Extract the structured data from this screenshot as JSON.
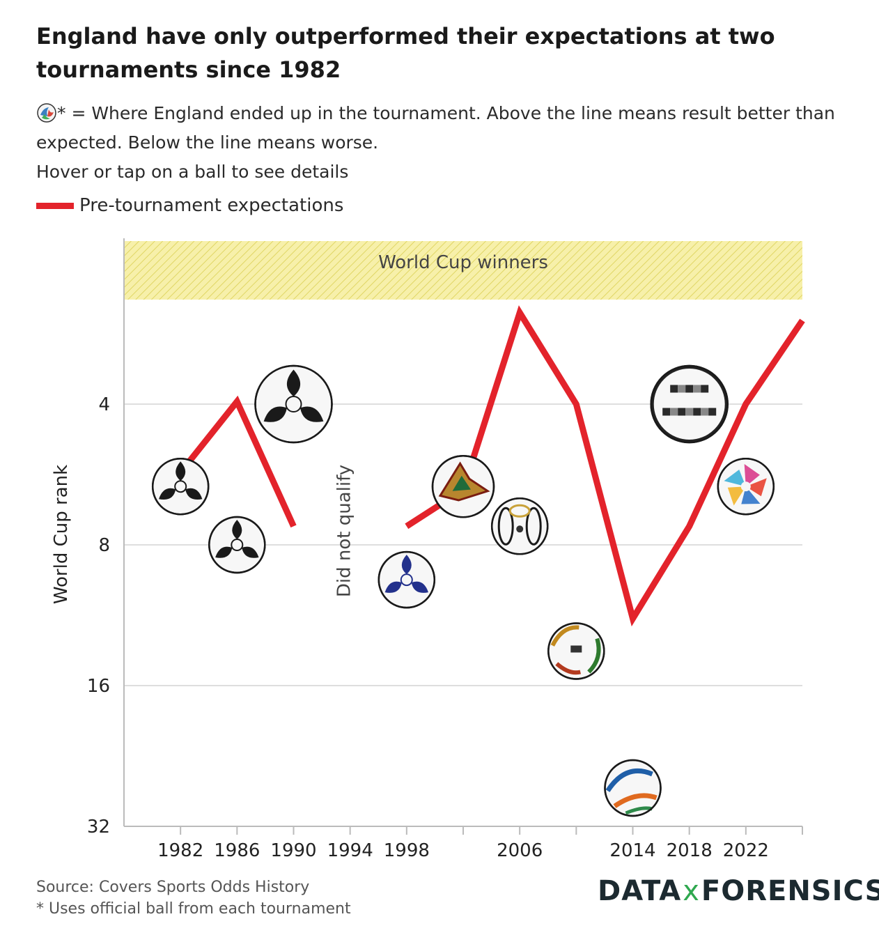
{
  "title": "England have only outperformed their expectations at two tournaments since 1982",
  "subtitle": {
    "line1": "* = Where England ended up in the tournament. Above the line means result better than expected. Below the line means worse.",
    "line2": "Hover or tap on a ball to see details"
  },
  "legend": {
    "label": "Pre-tournament expectations"
  },
  "colors": {
    "line": "#e3232b",
    "band": "#f6eea3",
    "band_stripe": "#e2d96a",
    "grid": "#dedede"
  },
  "footer": {
    "source": "Source: Covers Sports Odds History",
    "note": "* Uses official ball from each tournament"
  },
  "logo": {
    "left": "DATA",
    "mid": "x",
    "right": "FORENSICS"
  },
  "chart_data": {
    "type": "line",
    "ylabel": "World Cup rank",
    "y_scale": "log2",
    "y_reversed": true,
    "yticks": [
      4,
      8,
      16,
      32
    ],
    "ylim": [
      1,
      32
    ],
    "xlim": [
      1978,
      2026
    ],
    "xticks": [
      1982,
      1986,
      1990,
      1994,
      1998,
      2002,
      2006,
      2010,
      2014,
      2018,
      2022,
      2026
    ],
    "xtick_labels": [
      "1982",
      "1986",
      "1990",
      "1994",
      "1998",
      "",
      "2006",
      "",
      "2014",
      "2018",
      "2022",
      ""
    ],
    "band": {
      "label": "World Cup winners",
      "rank_range": [
        1,
        2.1
      ]
    },
    "annotation": {
      "text": "Did not qualify",
      "x": 1994
    },
    "series": [
      {
        "name": "Pre-tournament expectations",
        "segments": [
          [
            [
              1982,
              5.6
            ],
            [
              1986,
              3.95
            ],
            [
              1990,
              7.3
            ]
          ],
          [
            [
              1998,
              7.3
            ],
            [
              2002,
              6.1
            ],
            [
              2006,
              2.55
            ],
            [
              2010,
              4.0
            ],
            [
              2014,
              11.5
            ],
            [
              2018,
              7.3
            ],
            [
              2022,
              4.0
            ],
            [
              2026,
              2.65
            ]
          ]
        ]
      },
      {
        "name": "Where England ended up",
        "points": [
          {
            "x": 1982,
            "rank": 6.0,
            "ball": "tango-ball-icon"
          },
          {
            "x": 1986,
            "rank": 8.0,
            "ball": "azteca-ball-icon"
          },
          {
            "x": 1990,
            "rank": 4.0,
            "ball": "etrusco-ball-icon"
          },
          {
            "x": 1998,
            "rank": 9.5,
            "ball": "tricolore-ball-icon"
          },
          {
            "x": 2002,
            "rank": 6.0,
            "ball": "fevernova-ball-icon"
          },
          {
            "x": 2006,
            "rank": 7.3,
            "ball": "teamgeist-ball-icon"
          },
          {
            "x": 2010,
            "rank": 13.5,
            "ball": "jabulani-ball-icon"
          },
          {
            "x": 2014,
            "rank": 26.5,
            "ball": "brazuca-ball-icon"
          },
          {
            "x": 2018,
            "rank": 4.0,
            "ball": "telstar-ball-icon"
          },
          {
            "x": 2022,
            "rank": 6.0,
            "ball": "al-rihla-ball-icon"
          }
        ]
      }
    ]
  }
}
